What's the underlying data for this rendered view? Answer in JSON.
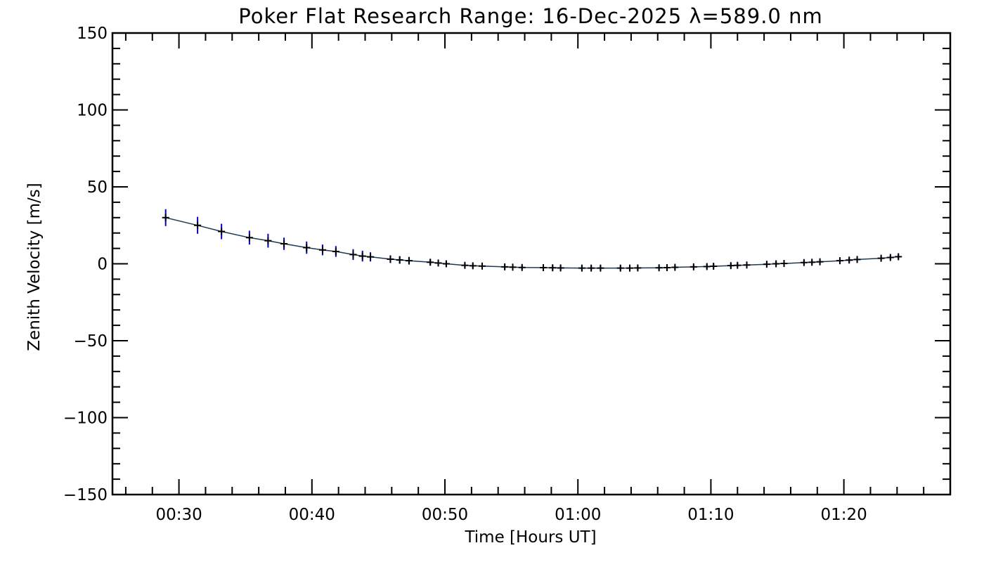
{
  "chart_data": {
    "type": "scatter",
    "title": "Poker Flat Research Range: 16-Dec-2025 λ=589.0 nm",
    "xlabel": "Time [Hours UT]",
    "ylabel": "Zenith Velocity [m/s]",
    "xlim_minutes_after_00_00": [
      25,
      88
    ],
    "ylim": [
      -150,
      150
    ],
    "x_ticks": [
      "00:30",
      "00:40",
      "00:50",
      "01:00",
      "01:10",
      "01:20"
    ],
    "y_ticks": [
      "150",
      "100",
      "50",
      "0",
      "−50",
      "−100",
      "−150"
    ],
    "grid": false,
    "series": [
      {
        "name": "",
        "color": "#000000",
        "error_bar_color": "#0000cc",
        "fit_line_color": "#1a3a5a",
        "x_minutes": [
          29.0,
          31.4,
          33.2,
          35.3,
          36.7,
          37.9,
          39.6,
          40.8,
          41.8,
          43.1,
          43.8,
          44.4,
          45.9,
          46.6,
          47.3,
          48.9,
          49.5,
          50.1,
          51.5,
          52.1,
          52.8,
          54.5,
          55.1,
          55.8,
          57.4,
          58.1,
          58.7,
          60.3,
          61.0,
          61.7,
          63.2,
          63.9,
          64.5,
          66.1,
          66.7,
          67.3,
          68.7,
          69.7,
          70.2,
          71.5,
          72.0,
          72.7,
          74.2,
          74.9,
          75.5,
          77.0,
          77.6,
          78.2,
          79.7,
          80.4,
          81.0,
          82.8,
          83.5,
          84.1
        ],
        "values": [
          30,
          25,
          21,
          17,
          15,
          13,
          10.5,
          9,
          8,
          6,
          5,
          4.5,
          3,
          2.5,
          2,
          1,
          0.5,
          0,
          -1,
          -1.3,
          -1.5,
          -2,
          -2.2,
          -2.4,
          -2.5,
          -2.6,
          -2.7,
          -2.8,
          -2.8,
          -2.8,
          -2.8,
          -2.8,
          -2.7,
          -2.6,
          -2.5,
          -2.3,
          -2,
          -1.8,
          -1.6,
          -1.2,
          -1,
          -0.8,
          -0.3,
          0,
          0.2,
          0.8,
          1,
          1.3,
          2,
          2.4,
          2.8,
          3.6,
          4.1,
          4.6
        ],
        "errors": [
          5.5,
          5.5,
          5.0,
          4.5,
          4.5,
          4.0,
          4.0,
          3.5,
          3.5,
          3.5,
          3.5,
          3.0,
          2.5,
          2.5,
          2.5,
          2.0,
          2.0,
          2.0,
          1.5,
          1.5,
          1.5,
          1.5,
          1.5,
          1.5,
          1.5,
          1.5,
          1.5,
          1.5,
          1.5,
          1.5,
          1.5,
          1.5,
          1.5,
          1.5,
          1.5,
          1.5,
          1.5,
          1.5,
          1.5,
          1.5,
          1.5,
          1.5,
          1.5,
          1.5,
          1.5,
          1.5,
          1.5,
          1.5,
          1.5,
          1.5,
          1.5,
          1.5,
          1.5,
          1.5
        ]
      }
    ]
  }
}
